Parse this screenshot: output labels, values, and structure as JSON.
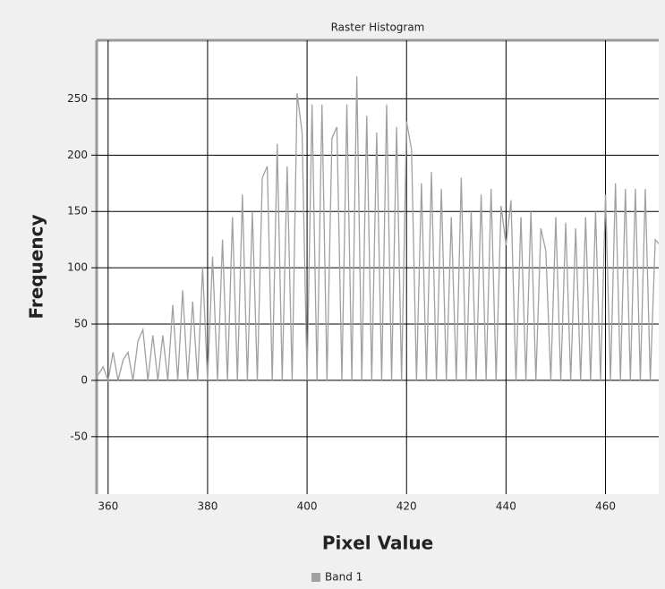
{
  "chart_data": {
    "type": "line",
    "title": "Raster Histogram",
    "x_label": "Pixel Value",
    "y_label": "Frequency",
    "x": [
      358,
      359,
      360,
      361,
      362,
      363,
      364,
      365,
      366,
      367,
      368,
      369,
      370,
      371,
      372,
      373,
      374,
      375,
      376,
      377,
      378,
      379,
      380,
      381,
      382,
      383,
      384,
      385,
      386,
      387,
      388,
      389,
      390,
      391,
      392,
      393,
      394,
      395,
      396,
      397,
      398,
      399,
      400,
      401,
      402,
      403,
      404,
      405,
      406,
      407,
      408,
      409,
      410,
      411,
      412,
      413,
      414,
      415,
      416,
      417,
      418,
      419,
      420,
      421,
      422,
      423,
      424,
      425,
      426,
      427,
      428,
      429,
      430,
      431,
      432,
      433,
      434,
      435,
      436,
      437,
      438,
      439,
      440,
      441,
      442,
      443,
      444,
      445,
      446,
      447,
      448,
      449,
      450,
      451,
      452,
      453,
      454,
      455,
      456,
      457,
      458,
      459,
      460,
      461,
      462,
      463,
      464,
      465,
      466,
      467,
      468,
      469,
      470,
      471
    ],
    "series": [
      {
        "name": "Band 1",
        "color": "#a0a0a0",
        "values": [
          5,
          12,
          0,
          25,
          0,
          18,
          25,
          0,
          35,
          45,
          0,
          40,
          0,
          40,
          0,
          67,
          0,
          80,
          0,
          70,
          0,
          100,
          0,
          110,
          0,
          125,
          0,
          145,
          0,
          165,
          0,
          150,
          0,
          180,
          190,
          0,
          210,
          0,
          190,
          0,
          255,
          220,
          0,
          245,
          0,
          245,
          0,
          215,
          225,
          0,
          245,
          0,
          270,
          0,
          235,
          0,
          220,
          0,
          245,
          0,
          225,
          0,
          230,
          205,
          0,
          175,
          0,
          185,
          0,
          170,
          0,
          145,
          0,
          180,
          0,
          150,
          0,
          165,
          0,
          170,
          0,
          155,
          120,
          160,
          0,
          145,
          0,
          150,
          0,
          135,
          115,
          0,
          145,
          0,
          140,
          0,
          135,
          0,
          145,
          0,
          150,
          0,
          165,
          0,
          175,
          0,
          170,
          0,
          170,
          0,
          170,
          0,
          125,
          120
        ]
      }
    ],
    "xlim": [
      357.7,
      470.7
    ],
    "ylim": [
      -101,
      302
    ],
    "xticks": [
      360,
      380,
      400,
      420,
      440,
      460
    ],
    "yticks": [
      -50,
      0,
      50,
      100,
      150,
      200,
      250
    ],
    "grid": true,
    "legend": "bottom"
  }
}
